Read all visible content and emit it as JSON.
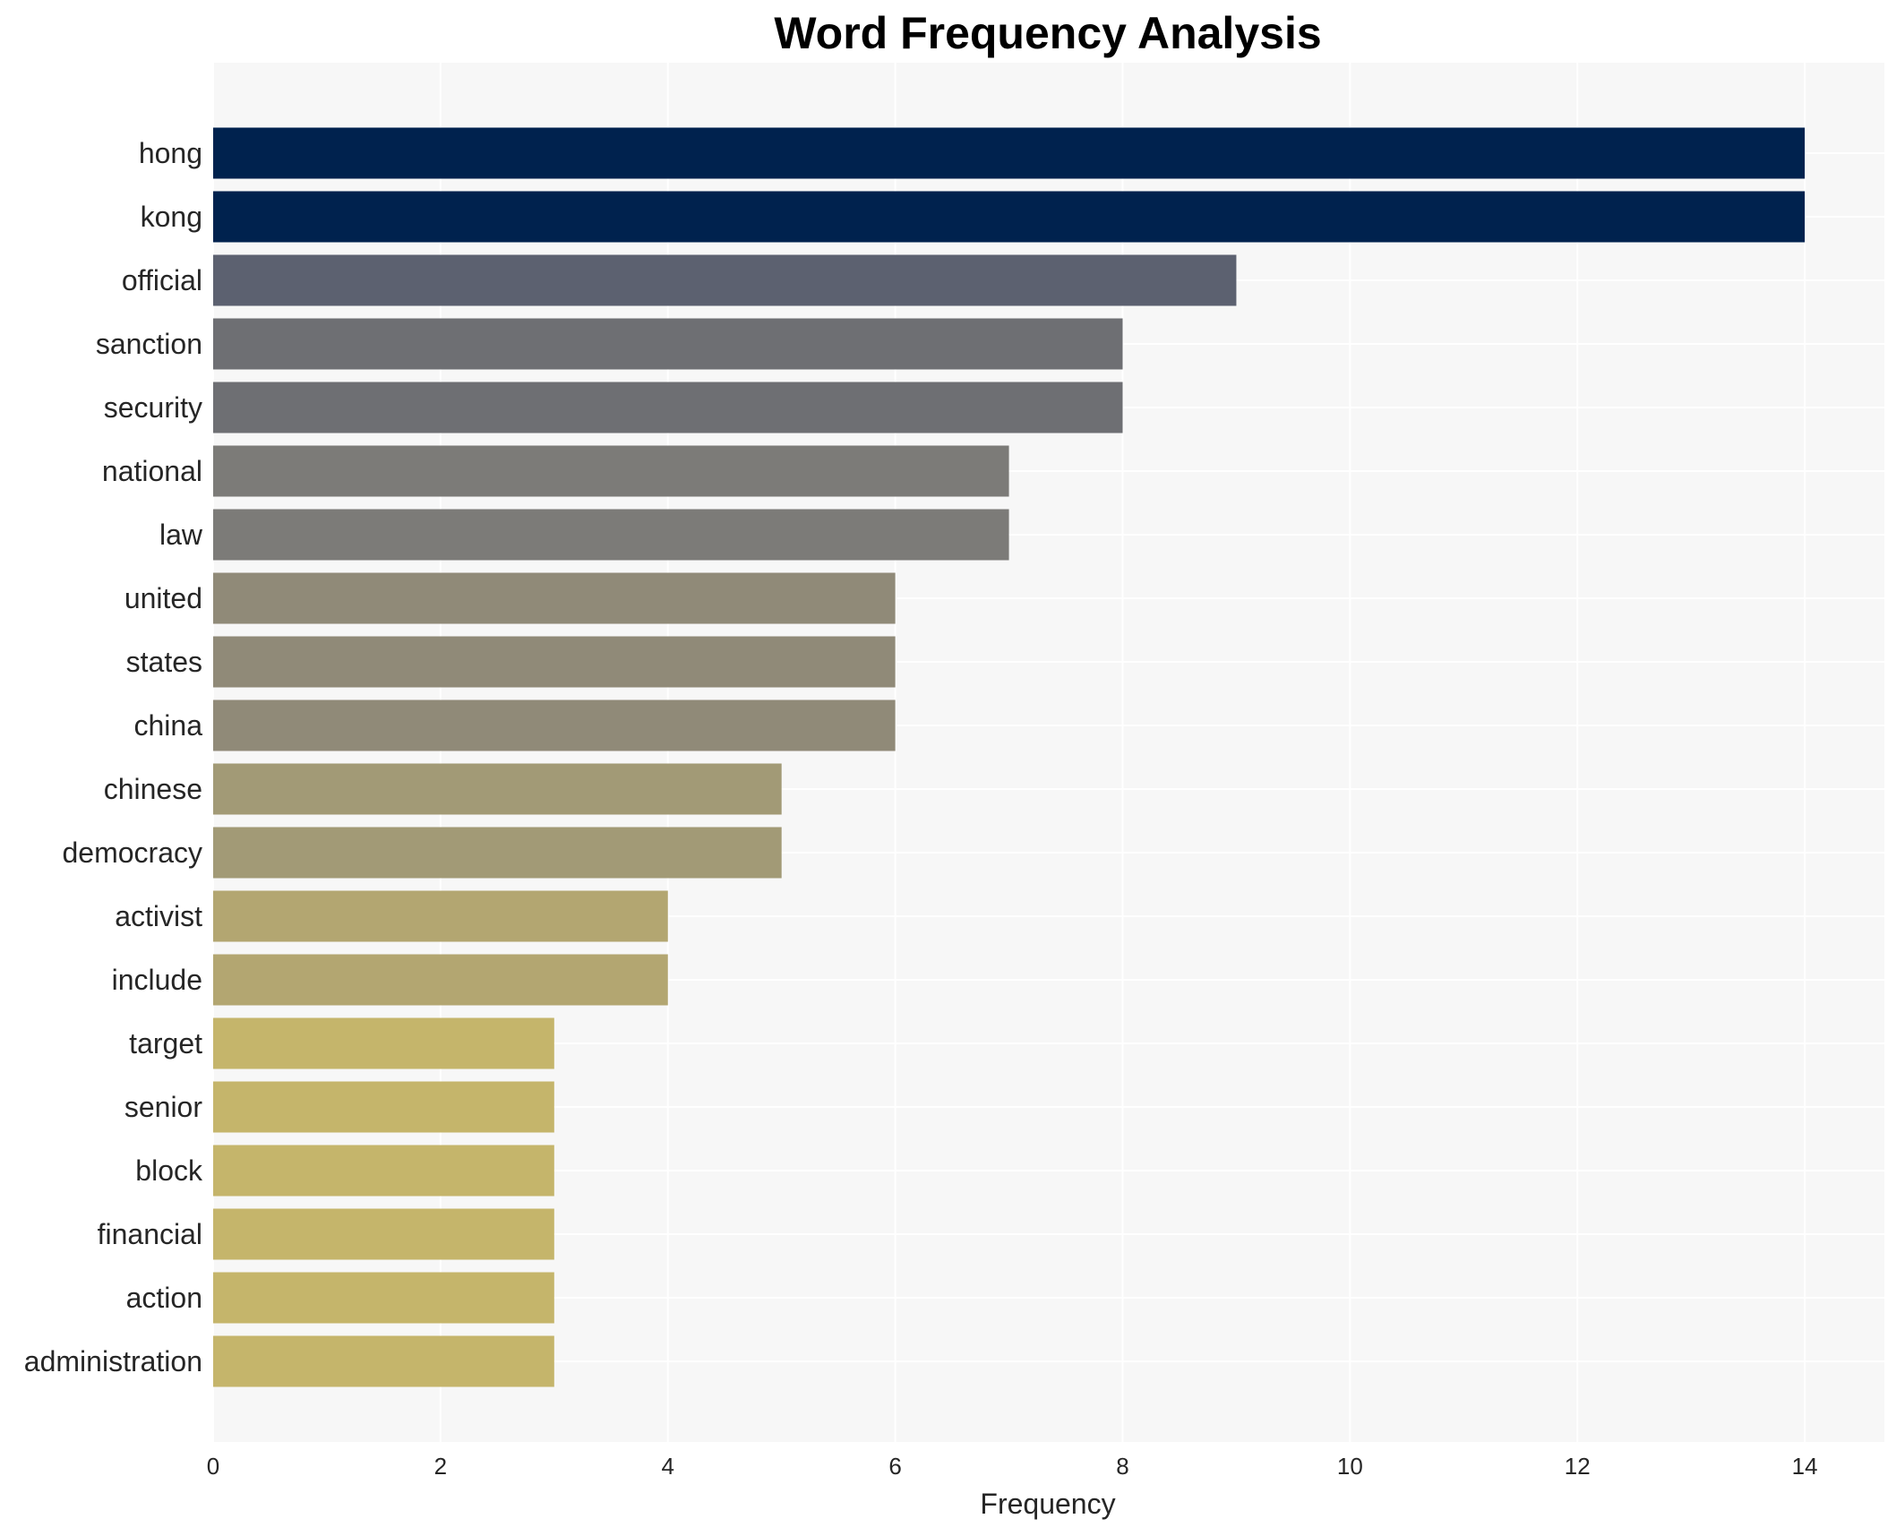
{
  "chart_data": {
    "type": "bar",
    "orientation": "horizontal",
    "title": "Word Frequency Analysis",
    "xlabel": "Frequency",
    "ylabel": "",
    "xlim": [
      0,
      14.7
    ],
    "xticks": [
      0,
      2,
      4,
      6,
      8,
      10,
      12,
      14
    ],
    "grid": true,
    "legend": "none",
    "categories": [
      "hong",
      "kong",
      "official",
      "sanction",
      "security",
      "national",
      "law",
      "united",
      "states",
      "china",
      "chinese",
      "democracy",
      "activist",
      "include",
      "target",
      "senior",
      "block",
      "financial",
      "action",
      "administration"
    ],
    "values": [
      14,
      14,
      9,
      8,
      8,
      7,
      7,
      6,
      6,
      6,
      5,
      5,
      4,
      4,
      3,
      3,
      3,
      3,
      3,
      3
    ],
    "colors": [
      "#00224e",
      "#00224e",
      "#5c6170",
      "#6e6f73",
      "#6e6f73",
      "#7c7b78",
      "#7c7b78",
      "#908a78",
      "#908a78",
      "#908a78",
      "#a29a76",
      "#a29a76",
      "#b3a671",
      "#b3a671",
      "#c5b56b",
      "#c5b56b",
      "#c5b56b",
      "#c5b56b",
      "#c5b56b",
      "#c5b56b"
    ],
    "background": "#f7f7f7",
    "grid_color": "#ffffff"
  }
}
